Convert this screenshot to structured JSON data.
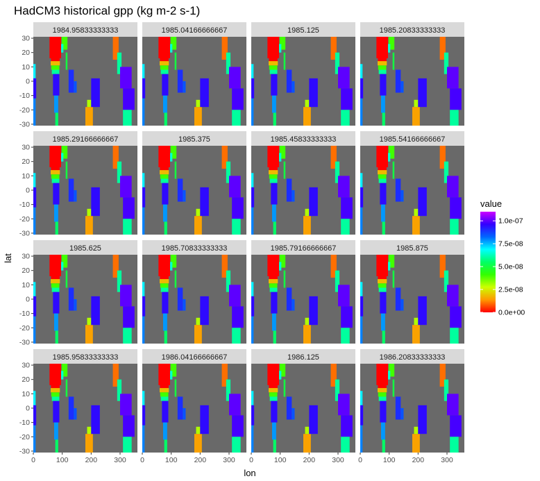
{
  "chart_data": {
    "type": "heatmap",
    "title": "HadCM3 historical gpp (kg m-2 s-1)",
    "xlabel": "lon",
    "ylabel": "lat",
    "xlim": [
      0,
      360
    ],
    "ylim": [
      -31,
      31
    ],
    "x_ticks": [
      0,
      100,
      200,
      300
    ],
    "y_ticks": [
      -30,
      -20,
      -10,
      0,
      10,
      20,
      30
    ],
    "facets": [
      "1984.95833333333",
      "1985.04166666667",
      "1985.125",
      "1985.20833333333",
      "1985.29166666667",
      "1985.375",
      "1985.45833333333",
      "1985.54166666667",
      "1985.625",
      "1985.70833333333",
      "1985.79166666667",
      "1985.875",
      "1985.95833333333",
      "1986.04166666667",
      "1986.125",
      "1986.20833333333"
    ],
    "na_color": "#696969",
    "legend": {
      "title": "value",
      "position": "right",
      "range": [
        0,
        1.1e-07
      ],
      "ticks": [
        {
          "value": 1e-07,
          "label": "1.0e-07"
        },
        {
          "value": 7.5e-08,
          "label": "7.5e-08"
        },
        {
          "value": 5e-08,
          "label": "5.0e-08"
        },
        {
          "value": 2.5e-08,
          "label": "2.5e-08"
        },
        {
          "value": 0,
          "label": "0.0e+00"
        }
      ],
      "colors": [
        "#ff0000",
        "#ff9900",
        "#ccff00",
        "#33ff00",
        "#00ff66",
        "#00ffff",
        "#0066ff",
        "#3300ff",
        "#cc00ff"
      ]
    },
    "regions": [
      {
        "name": "north-africa-arabia",
        "lon": [
          56,
          96
        ],
        "lat": [
          16,
          31
        ],
        "value": 0
      },
      {
        "name": "north-africa-inner",
        "lon": [
          61,
          91
        ],
        "lat": [
          12,
          18
        ],
        "value": 0
      },
      {
        "name": "sahel-orange",
        "lon": [
          60,
          92
        ],
        "lat": [
          11,
          14
        ],
        "value": 1.8e-08
      },
      {
        "name": "sahel-green",
        "lon": [
          62,
          90
        ],
        "lat": [
          8,
          11
        ],
        "value": 4e-08
      },
      {
        "name": "sahel-cyan",
        "lon": [
          64,
          90
        ],
        "lat": [
          5,
          8
        ],
        "value": 6e-08
      },
      {
        "name": "central-africa-purple",
        "lon": [
          68,
          90
        ],
        "lat": [
          -10,
          5
        ],
        "value": 9.5e-08
      },
      {
        "name": "southern-africa-blue",
        "lon": [
          72,
          86
        ],
        "lat": [
          -22,
          -10
        ],
        "value": 7.8e-08
      },
      {
        "name": "south-africa-tip",
        "lon": [
          76,
          86
        ],
        "lat": [
          -31,
          -22
        ],
        "value": 5.5e-08
      },
      {
        "name": "asia-green",
        "lon": [
          98,
          118
        ],
        "lat": [
          22,
          31
        ],
        "value": 4e-08
      },
      {
        "name": "asia-cyan",
        "lon": [
          96,
          104
        ],
        "lat": [
          20,
          26
        ],
        "value": 6.5e-08
      },
      {
        "name": "india-tip",
        "lon": [
          112,
          118
        ],
        "lat": [
          8,
          20
        ],
        "value": 5e-08
      },
      {
        "name": "se-asia-islands",
        "lon": [
          122,
          140
        ],
        "lat": [
          -8,
          8
        ],
        "value": 9e-08
      },
      {
        "name": "new-guinea",
        "lon": [
          140,
          150
        ],
        "lat": [
          -8,
          0
        ],
        "value": 8.5e-08
      },
      {
        "name": "australia",
        "lon": [
          180,
          206
        ],
        "lat": [
          -31,
          -18
        ],
        "value": 1.5e-08
      },
      {
        "name": "australia-north",
        "lon": [
          186,
          200
        ],
        "lat": [
          -18,
          -13
        ],
        "value": 3e-08
      },
      {
        "name": "pacific-islands",
        "lon": [
          200,
          230
        ],
        "lat": [
          -18,
          2
        ],
        "value": 9.5e-08
      },
      {
        "name": "mexico",
        "lon": [
          275,
          295
        ],
        "lat": [
          15,
          31
        ],
        "value": 1e-08
      },
      {
        "name": "central-america",
        "lon": [
          290,
          305
        ],
        "lat": [
          5,
          20
        ],
        "value": 6e-08
      },
      {
        "name": "south-america-north",
        "lon": [
          300,
          340
        ],
        "lat": [
          -5,
          10
        ],
        "value": 1e-07
      },
      {
        "name": "amazon",
        "lon": [
          310,
          350
        ],
        "lat": [
          -20,
          -5
        ],
        "value": 9.8e-08
      },
      {
        "name": "south-america-south",
        "lon": [
          310,
          340
        ],
        "lat": [
          -31,
          -20
        ],
        "value": 6e-08
      },
      {
        "name": "west-africa-edge-a",
        "lon": [
          0,
          8
        ],
        "lat": [
          2,
          12
        ],
        "value": 7e-08
      },
      {
        "name": "west-africa-edge-b",
        "lon": [
          0,
          10
        ],
        "lat": [
          -12,
          2
        ],
        "value": 9.5e-08
      },
      {
        "name": "west-africa-edge-c",
        "lon": [
          0,
          8
        ],
        "lat": [
          -31,
          -12
        ],
        "value": 8e-08
      }
    ]
  }
}
